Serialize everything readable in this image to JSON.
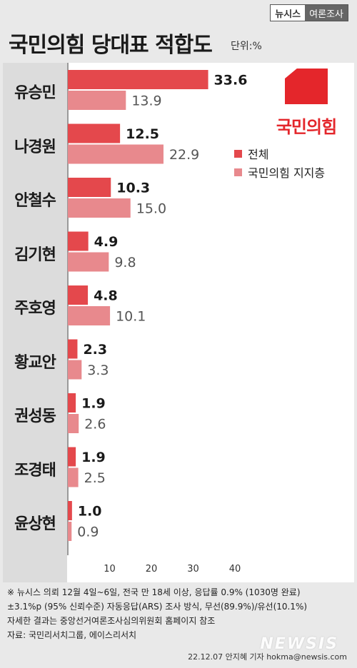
{
  "header": {
    "badge_brand": "뉴시스",
    "badge_tag": "여론조사",
    "title": "국민의힘 당대표 적합도",
    "unit": "단위:%"
  },
  "logo": {
    "text": "국민의힘"
  },
  "colors": {
    "total": "#e4484c",
    "supporters": "#e8898d",
    "brand": "#e4262b"
  },
  "chart_data": {
    "type": "bar",
    "orientation": "horizontal",
    "categories": [
      "유승민",
      "나경원",
      "안철수",
      "김기현",
      "주호영",
      "황교안",
      "권성동",
      "조경태",
      "윤상현"
    ],
    "series": [
      {
        "name": "전체",
        "values": [
          33.6,
          12.5,
          10.3,
          4.9,
          4.8,
          2.3,
          1.9,
          1.9,
          1.0
        ]
      },
      {
        "name": "국민의힘 지지층",
        "values": [
          13.9,
          22.9,
          15.0,
          9.8,
          10.1,
          3.3,
          2.6,
          2.5,
          0.9
        ]
      }
    ],
    "value_labels": [
      [
        "33.6",
        "12.5",
        "10.3",
        "4.9",
        "4.8",
        "2.3",
        "1.9",
        "1.9",
        "1.0"
      ],
      [
        "13.9",
        "22.9",
        "15.0",
        "9.8",
        "10.1",
        "3.3",
        "2.6",
        "2.5",
        "0.9"
      ]
    ],
    "xticks": [
      "10",
      "20",
      "30",
      "40"
    ],
    "xlim": [
      0,
      40
    ],
    "legend_position": "top-right",
    "grid": false
  },
  "footer": {
    "note1": "※ 뉴시스 의뢰 12월 4일~6일, 전국 만 18세 이상, 응답률 0.9% (1030명 완료)",
    "note2": "±3.1%p (95% 신뢰수준) 자동응답(ARS) 조사 방식, 무선(89.9%)/유선(10.1%)",
    "note3": "자세한 결과는 중앙선거여론조사심의위원회 홈페이지 참조",
    "source": "자료: 국민리서치그룹, 에이스리서치",
    "watermark": "NEWSIS",
    "credit": "22.12.07 안지혜 기자 hokma@newsis.com"
  }
}
